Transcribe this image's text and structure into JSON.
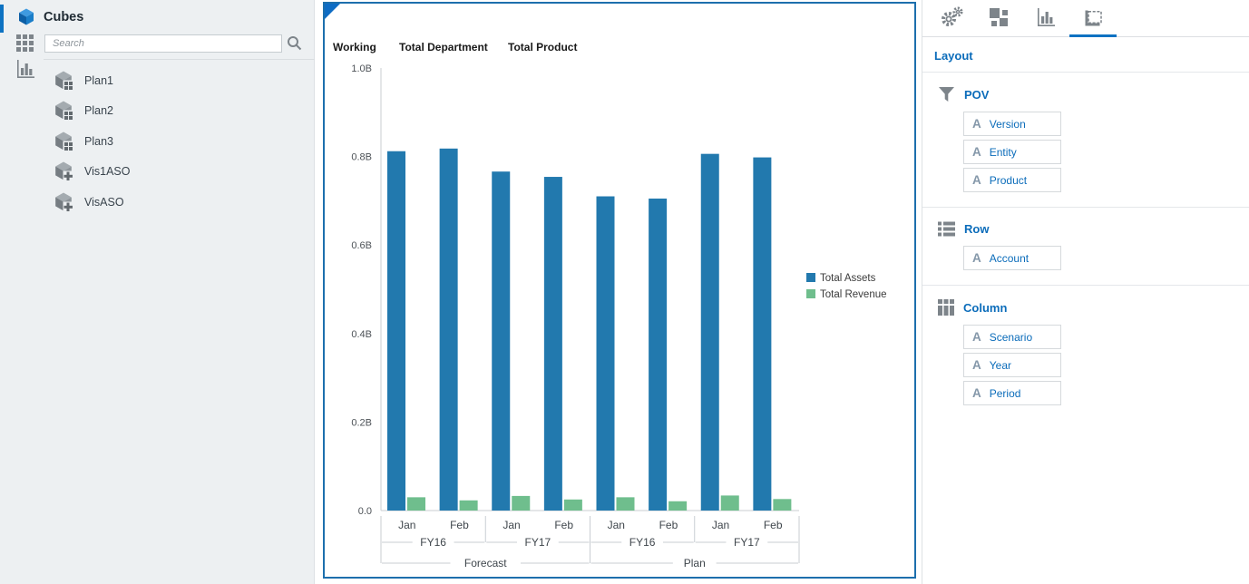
{
  "sidebar": {
    "title": "Cubes",
    "search": {
      "placeholder": "Search"
    },
    "items": [
      {
        "label": "Plan1",
        "icon": "cube-grid-icon"
      },
      {
        "label": "Plan2",
        "icon": "cube-grid-icon"
      },
      {
        "label": "Plan3",
        "icon": "cube-grid-icon"
      },
      {
        "label": "Vis1ASO",
        "icon": "cube-plus-icon"
      },
      {
        "label": "VisASO",
        "icon": "cube-plus-icon"
      }
    ]
  },
  "right_panel": {
    "title": "Layout",
    "tabs": [
      {
        "name": "settings",
        "icon": "gears-icon",
        "active": false
      },
      {
        "name": "tiles",
        "icon": "tiles-icon",
        "active": false
      },
      {
        "name": "chart",
        "icon": "barchart-icon",
        "active": false
      },
      {
        "name": "layout",
        "icon": "frame-icon",
        "active": true
      }
    ],
    "sections": [
      {
        "label": "POV",
        "icon": "funnel-icon",
        "items": [
          "Version",
          "Entity",
          "Product"
        ]
      },
      {
        "label": "Row",
        "icon": "rows-icon",
        "items": [
          "Account"
        ]
      },
      {
        "label": "Column",
        "icon": "columns-icon",
        "items": [
          "Scenario",
          "Year",
          "Period"
        ]
      }
    ]
  },
  "chart_data": {
    "type": "bar",
    "header_labels": [
      "Working",
      "Total Department",
      "Total Product"
    ],
    "unit": "B",
    "ylim": [
      0,
      1.0
    ],
    "y_ticks": [
      {
        "v": 1.0,
        "label": "1.0B"
      },
      {
        "v": 0.8,
        "label": "0.8B"
      },
      {
        "v": 0.6,
        "label": "0.6B"
      },
      {
        "v": 0.4,
        "label": "0.4B"
      },
      {
        "v": 0.2,
        "label": "0.2B"
      },
      {
        "v": 0.0,
        "label": "0.0"
      }
    ],
    "x_axis": {
      "months": [
        "Jan",
        "Feb",
        "Jan",
        "Feb",
        "Jan",
        "Feb",
        "Jan",
        "Feb"
      ],
      "years": [
        {
          "label": "FY16",
          "span": 2
        },
        {
          "label": "FY17",
          "span": 2
        },
        {
          "label": "FY16",
          "span": 2
        },
        {
          "label": "FY17",
          "span": 2
        }
      ],
      "scenarios": [
        {
          "label": "Forecast",
          "span": 4
        },
        {
          "label": "Plan",
          "span": 4
        }
      ]
    },
    "series": [
      {
        "name": "Total Assets",
        "color": "#2279ae",
        "values": [
          0.812,
          0.818,
          0.766,
          0.754,
          0.71,
          0.705,
          0.806,
          0.798
        ]
      },
      {
        "name": "Total Revenue",
        "color": "#6fbe8d",
        "values": [
          0.03,
          0.023,
          0.033,
          0.025,
          0.03,
          0.021,
          0.034,
          0.026
        ]
      }
    ],
    "legend_position": "right",
    "grid": false
  },
  "colors": {
    "accent_blue": "#0b6cba",
    "tab_underline": "#0d72c2",
    "panel_border_blue": "#1d6fad",
    "corner_triangle": "#0e6cc4",
    "bar_blue": "#2279ae",
    "bar_green": "#6fbe8d",
    "icon_gray": "#7d848a",
    "axis_line": "#c9ced2"
  }
}
